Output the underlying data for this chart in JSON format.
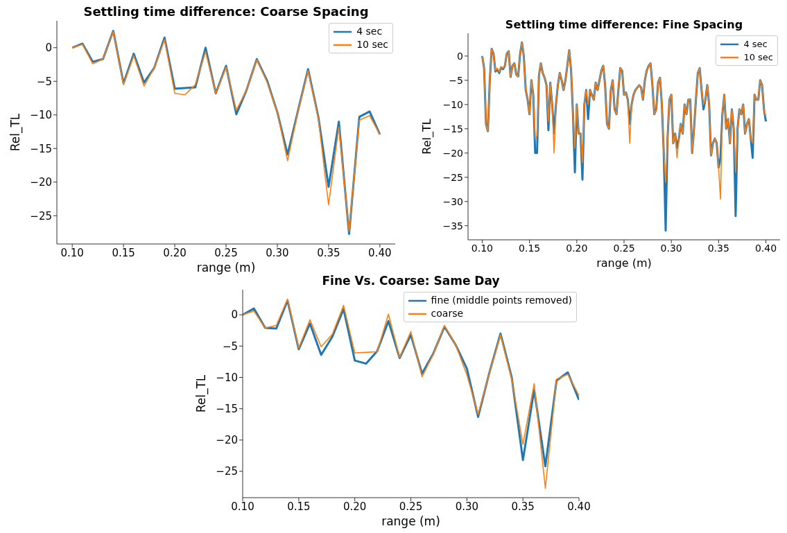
{
  "chart_data": [
    {
      "type": "line",
      "title": "Settling time difference: Coarse Spacing",
      "xlabel": "range (m)",
      "ylabel": "Rel_TL",
      "legend": "top right",
      "grid": false,
      "x": [
        0.1,
        0.11,
        0.12,
        0.13,
        0.14,
        0.15,
        0.16,
        0.17,
        0.18,
        0.19,
        0.2,
        0.21,
        0.22,
        0.23,
        0.24,
        0.25,
        0.26,
        0.27,
        0.28,
        0.29,
        0.3,
        0.31,
        0.32,
        0.33,
        0.34,
        0.35,
        0.36,
        0.37,
        0.38,
        0.39,
        0.4
      ],
      "series": [
        {
          "name": "4 sec",
          "color": "#1f77b4",
          "values": [
            0,
            0.6,
            -2.1,
            -1.7,
            2.5,
            -5.3,
            -0.9,
            -5.2,
            -3.0,
            1.5,
            -6.1,
            -6.0,
            -5.9,
            0.0,
            -6.8,
            -2.7,
            -9.9,
            -6.3,
            -1.7,
            -4.9,
            -9.6,
            -15.9,
            -9.5,
            -3.2,
            -10.3,
            -20.7,
            -11.0,
            -27.7,
            -10.3,
            -9.5,
            -12.9
          ]
        },
        {
          "name": "10 sec",
          "color": "#ff7f0e",
          "values": [
            0,
            0.5,
            -2.4,
            -1.7,
            2.4,
            -5.5,
            -1.2,
            -5.7,
            -3.0,
            1.2,
            -6.8,
            -7.0,
            -5.5,
            -0.6,
            -6.8,
            -2.9,
            -9.3,
            -6.3,
            -1.8,
            -5.1,
            -9.6,
            -16.8,
            -9.6,
            -3.4,
            -10.5,
            -23.4,
            -11.8,
            -27.3,
            -10.8,
            -10.1,
            -12.9
          ]
        }
      ],
      "xlim": [
        0.085,
        0.415
      ],
      "ylim": [
        -29.2,
        4.0
      ],
      "xticks": [
        {
          "value": 0.1,
          "label": "0.10"
        },
        {
          "value": 0.15,
          "label": "0.15"
        },
        {
          "value": 0.2,
          "label": "0.20"
        },
        {
          "value": 0.25,
          "label": "0.25"
        },
        {
          "value": 0.3,
          "label": "0.30"
        },
        {
          "value": 0.35,
          "label": "0.35"
        },
        {
          "value": 0.4,
          "label": "0.40"
        }
      ],
      "yticks": [
        {
          "value": -25,
          "label": "−25"
        },
        {
          "value": -20,
          "label": "−20"
        },
        {
          "value": -15,
          "label": "−15"
        },
        {
          "value": -10,
          "label": "−10"
        },
        {
          "value": -5,
          "label": "−5"
        },
        {
          "value": 0,
          "label": "0"
        }
      ]
    },
    {
      "type": "line",
      "title": "Settling time difference: Fine Spacing",
      "xlabel": "range (m)",
      "ylabel": "Rel_TL",
      "legend": "top right",
      "grid": false,
      "x": [
        0.1,
        0.102,
        0.104,
        0.106,
        0.108,
        0.11,
        0.112,
        0.114,
        0.116,
        0.118,
        0.12,
        0.122,
        0.124,
        0.126,
        0.128,
        0.13,
        0.132,
        0.134,
        0.136,
        0.138,
        0.14,
        0.142,
        0.144,
        0.146,
        0.148,
        0.15,
        0.152,
        0.154,
        0.156,
        0.158,
        0.16,
        0.162,
        0.164,
        0.166,
        0.168,
        0.17,
        0.172,
        0.174,
        0.176,
        0.178,
        0.18,
        0.182,
        0.184,
        0.186,
        0.188,
        0.19,
        0.192,
        0.194,
        0.196,
        0.198,
        0.2,
        0.202,
        0.204,
        0.206,
        0.208,
        0.21,
        0.212,
        0.214,
        0.216,
        0.218,
        0.22,
        0.222,
        0.224,
        0.226,
        0.228,
        0.23,
        0.232,
        0.234,
        0.236,
        0.238,
        0.24,
        0.242,
        0.244,
        0.246,
        0.248,
        0.25,
        0.252,
        0.254,
        0.256,
        0.258,
        0.26,
        0.262,
        0.264,
        0.266,
        0.268,
        0.27,
        0.272,
        0.274,
        0.276,
        0.278,
        0.28,
        0.282,
        0.284,
        0.286,
        0.288,
        0.29,
        0.292,
        0.294,
        0.296,
        0.298,
        0.3,
        0.302,
        0.304,
        0.306,
        0.308,
        0.31,
        0.312,
        0.314,
        0.316,
        0.318,
        0.32,
        0.322,
        0.324,
        0.326,
        0.328,
        0.33,
        0.332,
        0.334,
        0.336,
        0.338,
        0.34,
        0.342,
        0.344,
        0.346,
        0.348,
        0.35,
        0.352,
        0.354,
        0.356,
        0.358,
        0.36,
        0.362,
        0.364,
        0.366,
        0.368,
        0.37,
        0.372,
        0.374,
        0.376,
        0.378,
        0.38,
        0.382,
        0.384,
        0.386,
        0.388,
        0.39,
        0.392,
        0.394,
        0.396,
        0.398,
        0.4
      ],
      "series": [
        {
          "name": "4 sec",
          "color": "#1f77b4",
          "values": [
            0,
            -2.5,
            -14,
            -15.5,
            -5,
            1.5,
            0.5,
            -3.2,
            -2.8,
            -3.5,
            -2.3,
            -2.7,
            -2,
            0.5,
            1,
            -4.3,
            -2,
            -1.5,
            -3.8,
            -4.2,
            0.3,
            2.8,
            0,
            -7,
            -9,
            -12,
            -5,
            -8,
            -20,
            -20,
            -4,
            -1.5,
            -3.5,
            -4.5,
            -6,
            -15.3,
            -5.5,
            -10,
            -16,
            -10,
            -6,
            -3.5,
            -5,
            -7,
            -5,
            -2,
            1.2,
            -3,
            -12,
            -24,
            -10,
            -16,
            -16,
            -25.5,
            -10,
            -7,
            -13,
            -7,
            -8,
            -9,
            -5.5,
            -7,
            -5,
            -3,
            -2,
            -6,
            -14,
            -15,
            -7,
            -5,
            -11,
            -12,
            -7,
            -2.5,
            -3,
            -8,
            -7.5,
            -9,
            -14,
            -10,
            -8,
            -7,
            -6.5,
            -6,
            -6.5,
            -9,
            -5,
            -3,
            -2,
            -1.5,
            -6,
            -12,
            -11,
            -5.5,
            -4.5,
            -10,
            -20,
            -36,
            -17,
            -9,
            -8,
            -18,
            -16,
            -19,
            -17,
            -14,
            -16,
            -10,
            -12,
            -9,
            -9,
            -20,
            -15,
            -9,
            -3.5,
            -2.5,
            -7,
            -11,
            -9,
            -6,
            -10,
            -20.5,
            -18,
            -17,
            -18,
            -23,
            -21,
            -12,
            -8,
            -15,
            -13,
            -18,
            -11,
            -15,
            -33,
            -15,
            -11,
            -12,
            -10,
            -16,
            -14,
            -13,
            -17,
            -21,
            -8,
            -9,
            -9,
            -5,
            -6,
            -11,
            -13.5
          ]
        },
        {
          "name": "10 sec",
          "color": "#ff7f0e",
          "values": [
            0,
            -2.5,
            -14,
            -15.5,
            -5,
            1.5,
            0.5,
            -3,
            -2.5,
            -3.3,
            -2.2,
            -2.5,
            -2,
            0.5,
            1,
            -4.3,
            -2,
            -1.5,
            -3.8,
            -4.2,
            0.3,
            2.8,
            0,
            -7,
            -9,
            -12,
            -5,
            -8,
            -17,
            -16.5,
            -4,
            -1.5,
            -3.5,
            -4.5,
            -6,
            -13.5,
            -5.5,
            -10,
            -20,
            -10,
            -6,
            -3.5,
            -5,
            -7,
            -5,
            -2,
            1.2,
            -3,
            -12,
            -19,
            -10,
            -16,
            -16,
            -22,
            -10,
            -7,
            -10,
            -7,
            -8,
            -9,
            -5.5,
            -7,
            -5,
            -3,
            -2,
            -6,
            -14,
            -15,
            -7,
            -5,
            -11,
            -12,
            -7,
            -2.5,
            -3,
            -8,
            -7.5,
            -9,
            -18,
            -10,
            -8,
            -7,
            -6.5,
            -6,
            -6.5,
            -9,
            -5,
            -3,
            -2,
            -1.5,
            -6,
            -12,
            -11,
            -5.5,
            -4.5,
            -10,
            -20,
            -26,
            -17,
            -9,
            -8,
            -18,
            -16,
            -21,
            -17,
            -14,
            -16,
            -10,
            -12,
            -9,
            -9,
            -20,
            -15,
            -9,
            -3.5,
            -2.5,
            -7,
            -10,
            -9,
            -6,
            -10,
            -20.5,
            -18,
            -17,
            -18,
            -23,
            -29.5,
            -12,
            -8,
            -15,
            -13,
            -18,
            -11,
            -15,
            -24,
            -15,
            -11,
            -12,
            -10,
            -16,
            -14,
            -13,
            -17,
            -18,
            -8,
            -9,
            -9,
            -5,
            -6,
            -11,
            -12.5
          ]
        }
      ],
      "xlim": [
        0.085,
        0.415
      ],
      "ylim": [
        -37.9,
        4.7
      ],
      "xticks": [
        {
          "value": 0.1,
          "label": "0.10"
        },
        {
          "value": 0.15,
          "label": "0.15"
        },
        {
          "value": 0.2,
          "label": "0.20"
        },
        {
          "value": 0.25,
          "label": "0.25"
        },
        {
          "value": 0.3,
          "label": "0.30"
        },
        {
          "value": 0.35,
          "label": "0.35"
        },
        {
          "value": 0.4,
          "label": "0.40"
        }
      ],
      "yticks": [
        {
          "value": -35,
          "label": "−35"
        },
        {
          "value": -30,
          "label": "−30"
        },
        {
          "value": -25,
          "label": "−25"
        },
        {
          "value": -20,
          "label": "−20"
        },
        {
          "value": -15,
          "label": "−15"
        },
        {
          "value": -10,
          "label": "−10"
        },
        {
          "value": -5,
          "label": "−5"
        },
        {
          "value": 0,
          "label": "0"
        }
      ]
    },
    {
      "type": "line",
      "title": "Fine Vs. Coarse: Same Day",
      "xlabel": "range (m)",
      "ylabel": "Rel_TL",
      "legend": "top right",
      "grid": false,
      "x": [
        0.1,
        0.11,
        0.12,
        0.13,
        0.14,
        0.15,
        0.16,
        0.17,
        0.18,
        0.19,
        0.2,
        0.21,
        0.22,
        0.23,
        0.24,
        0.25,
        0.26,
        0.27,
        0.28,
        0.29,
        0.3,
        0.31,
        0.32,
        0.33,
        0.34,
        0.35,
        0.36,
        0.37,
        0.38,
        0.39,
        0.4
      ],
      "series": [
        {
          "name": "fine (middle points removed)",
          "color": "#1f77b4",
          "values": [
            0,
            1.0,
            -2.1,
            -2.2,
            2.3,
            -5.5,
            -1.4,
            -6.4,
            -3.5,
            0.9,
            -7.3,
            -7.8,
            -5.8,
            -1.0,
            -6.9,
            -3.2,
            -9.4,
            -6.2,
            -1.9,
            -4.8,
            -8.6,
            -16.3,
            -9.3,
            -3.0,
            -10.0,
            -23.2,
            -12.0,
            -24.2,
            -10.5,
            -9.2,
            -13.6
          ]
        },
        {
          "name": "coarse",
          "color": "#ff7f0e",
          "values": [
            0,
            0.6,
            -2.1,
            -1.7,
            2.5,
            -5.3,
            -0.8,
            -5.1,
            -3.1,
            1.5,
            -6.1,
            -6.0,
            -5.9,
            0.1,
            -6.8,
            -2.7,
            -9.9,
            -6.3,
            -1.7,
            -4.8,
            -9.6,
            -15.9,
            -9.4,
            -3.2,
            -10.3,
            -20.7,
            -11.0,
            -27.7,
            -10.3,
            -9.5,
            -12.9
          ]
        }
      ],
      "xlim": [
        0.1,
        0.4
      ],
      "ylim": [
        -29.2,
        4.0
      ],
      "xticks": [
        {
          "value": 0.1,
          "label": "0.10"
        },
        {
          "value": 0.15,
          "label": "0.15"
        },
        {
          "value": 0.2,
          "label": "0.20"
        },
        {
          "value": 0.25,
          "label": "0.25"
        },
        {
          "value": 0.3,
          "label": "0.30"
        },
        {
          "value": 0.35,
          "label": "0.35"
        },
        {
          "value": 0.4,
          "label": "0.40"
        }
      ],
      "yticks": [
        {
          "value": -25,
          "label": "−25"
        },
        {
          "value": -20,
          "label": "−20"
        },
        {
          "value": -15,
          "label": "−15"
        },
        {
          "value": -10,
          "label": "−10"
        },
        {
          "value": -5,
          "label": "−5"
        },
        {
          "value": 0,
          "label": "0"
        }
      ]
    }
  ]
}
